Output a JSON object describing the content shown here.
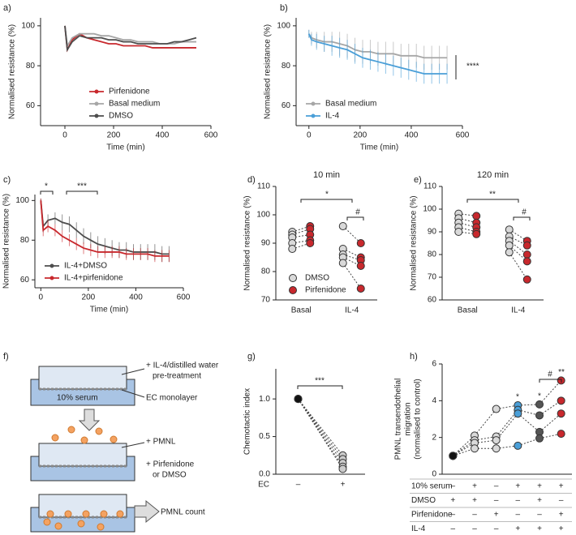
{
  "chart_data": [
    {
      "panel": "a)",
      "type": "line",
      "xlabel": "Time (min)",
      "ylabel": "Normalised resistance (%)",
      "x": [
        0,
        10,
        30,
        60,
        90,
        120,
        150,
        180,
        210,
        240,
        270,
        300,
        330,
        360,
        390,
        420,
        450,
        480,
        510,
        540
      ],
      "xlim": [
        -100,
        600
      ],
      "xticks": [
        0,
        200,
        400,
        600
      ],
      "ylim": [
        50,
        104
      ],
      "yticks": [
        60,
        80,
        100
      ],
      "legend": "lower center",
      "series": [
        {
          "name": "Pirfenidone",
          "color": "#c8282d",
          "values": [
            100,
            88,
            93,
            96,
            94,
            93,
            92,
            91,
            91,
            90,
            90,
            90,
            90,
            89,
            89,
            89,
            89,
            89,
            89,
            89
          ]
        },
        {
          "name": "Basal medium",
          "color": "#a6a6a6",
          "values": [
            100,
            90,
            94,
            96,
            96,
            96,
            95,
            95,
            94,
            93,
            93,
            92,
            92,
            92,
            91,
            91,
            91,
            92,
            92,
            92
          ]
        },
        {
          "name": "DMSO",
          "color": "#4d4d4d",
          "values": [
            100,
            88,
            92,
            95,
            94,
            94,
            94,
            93,
            93,
            92,
            92,
            91,
            91,
            91,
            91,
            91,
            92,
            92,
            93,
            94
          ]
        }
      ]
    },
    {
      "panel": "b)",
      "type": "line",
      "xlabel": "Time (min)",
      "ylabel": "Normalised resistance (%)",
      "x": [
        0,
        10,
        30,
        60,
        90,
        120,
        150,
        180,
        210,
        240,
        270,
        300,
        330,
        360,
        390,
        420,
        450,
        480,
        510,
        540
      ],
      "xlim": [
        -50,
        600
      ],
      "xticks": [
        0,
        200,
        400,
        600
      ],
      "ylim": [
        50,
        104
      ],
      "yticks": [
        60,
        80,
        100
      ],
      "legend": "lower left",
      "annotations": [
        "****"
      ],
      "series": [
        {
          "name": "Basal medium",
          "color": "#a6a6a6",
          "values": [
            96,
            94,
            93,
            92,
            92,
            91,
            90,
            88,
            87,
            87,
            86,
            86,
            86,
            85,
            85,
            85,
            84,
            84,
            84,
            84
          ],
          "errors": [
            2,
            3,
            4,
            5,
            5,
            6,
            6,
            6,
            6,
            6,
            6,
            6,
            6,
            6,
            6,
            6,
            6,
            6,
            6,
            6
          ]
        },
        {
          "name": "IL-4",
          "color": "#4a9fd8",
          "values": [
            96,
            93,
            92,
            91,
            90,
            89,
            88,
            86,
            84,
            83,
            82,
            81,
            80,
            79,
            78,
            77,
            76,
            76,
            76,
            76
          ],
          "errors": [
            2,
            3,
            4,
            4,
            5,
            5,
            5,
            5,
            5,
            5,
            5,
            5,
            5,
            5,
            5,
            5,
            5,
            5,
            5,
            5
          ]
        }
      ]
    },
    {
      "panel": "c)",
      "type": "line",
      "xlabel": "Time (min)",
      "ylabel": "Normalised resistance (%)",
      "x": [
        0,
        10,
        30,
        60,
        90,
        120,
        150,
        180,
        210,
        240,
        270,
        300,
        330,
        360,
        390,
        420,
        450,
        480,
        510,
        540
      ],
      "xlim": [
        -25,
        600
      ],
      "xticks": [
        0,
        200,
        400,
        600
      ],
      "ylim": [
        56,
        103
      ],
      "yticks": [
        60,
        80,
        100
      ],
      "legend": "lower left",
      "annotations": [
        "*",
        "***"
      ],
      "series": [
        {
          "name": "IL-4+DMSO",
          "color": "#4d4d4d",
          "values": [
            100,
            87,
            90,
            91,
            89,
            88,
            85,
            82,
            80,
            78,
            77,
            76,
            75,
            75,
            74,
            74,
            74,
            74,
            73,
            73
          ],
          "errors": [
            1,
            3,
            3,
            3,
            4,
            4,
            4,
            4,
            4,
            4,
            4,
            4,
            4,
            4,
            4,
            4,
            4,
            4,
            4,
            4
          ]
        },
        {
          "name": "IL-4+pirfenidone",
          "color": "#c8282d",
          "values": [
            100,
            85,
            87,
            85,
            82,
            80,
            78,
            76,
            75,
            74,
            74,
            74,
            74,
            73,
            73,
            73,
            73,
            72,
            72,
            72
          ],
          "errors": [
            1,
            3,
            3,
            3,
            3,
            3,
            3,
            3,
            3,
            3,
            3,
            3,
            3,
            3,
            3,
            3,
            3,
            3,
            3,
            3
          ]
        }
      ]
    },
    {
      "panel": "d)",
      "type": "paired_dot",
      "title": "10 min",
      "ylabel": "Normalised resistance (%)",
      "categories": [
        "Basal",
        "IL-4"
      ],
      "ylim": [
        70,
        110
      ],
      "yticks": [
        70,
        80,
        90,
        100,
        110
      ],
      "legend": "lower left",
      "annotations": [
        "*",
        "#"
      ],
      "series": [
        {
          "name": "DMSO",
          "color": "#d9d9d9",
          "values": [
            [
              94,
              93,
              92,
              90,
              88
            ],
            [
              96,
              88,
              86,
              85,
              83
            ]
          ]
        },
        {
          "name": "Pirfenidone",
          "color": "#c8282d",
          "values": [
            [
              96,
              95,
              93,
              91,
              90
            ],
            [
              90,
              85,
              84,
              82,
              74
            ]
          ]
        }
      ]
    },
    {
      "panel": "e)",
      "type": "paired_dot",
      "title": "120 min",
      "ylabel": "Normalised resistance (%)",
      "categories": [
        "Basal",
        "IL-4"
      ],
      "ylim": [
        60,
        110
      ],
      "yticks": [
        60,
        70,
        80,
        90,
        100,
        110
      ],
      "annotations": [
        "**",
        "#"
      ],
      "series": [
        {
          "color": "#d9d9d9",
          "values": [
            [
              98,
              96,
              94,
              92,
              90
            ],
            [
              91,
              88,
              86,
              84,
              81
            ]
          ]
        },
        {
          "color": "#c8282d",
          "values": [
            [
              97,
              94,
              92,
              90,
              89
            ],
            [
              86,
              84,
              80,
              77,
              69
            ]
          ]
        }
      ]
    },
    {
      "panel": "g)",
      "type": "paired_dot",
      "ylabel": "Chemotactic index",
      "xlabel": "EC",
      "categories": [
        "–",
        "+"
      ],
      "ylim": [
        0,
        1.4
      ],
      "yticks": [
        {
          "value": 0,
          "label": "0.0"
        },
        {
          "value": 0.5,
          "label": "0.5"
        },
        {
          "value": 1,
          "label": "1.0"
        }
      ],
      "annotations": [
        "***"
      ],
      "series": [
        {
          "colors": [
            "#111111",
            "#cccccc"
          ],
          "values": [
            [
              1,
              1,
              1,
              1,
              1
            ],
            [
              0.25,
              0.2,
              0.15,
              0.1,
              0.07
            ]
          ]
        }
      ]
    },
    {
      "panel": "h)",
      "type": "strip",
      "ylabel": [
        "PMNL transendothelial",
        "migration",
        "(normalised to control)"
      ],
      "ylim": [
        0,
        6
      ],
      "yticks": [
        0,
        2,
        4,
        6
      ],
      "annotations": [
        "*",
        "*",
        "**",
        "#"
      ],
      "groups": [
        {
          "color": "#111111",
          "values": [
            1,
            1,
            1,
            1
          ]
        },
        {
          "color": "#d9d9d9",
          "values": [
            2.1,
            1.85,
            1.7,
            1.4
          ]
        },
        {
          "color": "#d9d9d9",
          "values": [
            3.55,
            2.05,
            1.85,
            1.4
          ]
        },
        {
          "color": "#4a9fd8",
          "values": [
            3.75,
            3.5,
            3.3,
            1.55
          ]
        },
        {
          "color": "#555555",
          "values": [
            3.8,
            3.2,
            2.3,
            1.95
          ]
        },
        {
          "color": "#c8282d",
          "values": [
            5.1,
            4.0,
            3.3,
            2.2
          ]
        }
      ],
      "table": {
        "rows": [
          {
            "label": "10% serum",
            "cells": [
              "–",
              "+",
              "–",
              "+",
              "+",
              "+"
            ]
          },
          {
            "label": "DMSO",
            "cells": [
              "+",
              "+",
              "–",
              "–",
              "+",
              "–"
            ]
          },
          {
            "label": "Pirfenidone",
            "cells": [
              "–",
              "–",
              "+",
              "–",
              "–",
              "+"
            ]
          },
          {
            "label": "IL-4",
            "cells": [
              "–",
              "–",
              "–",
              "+",
              "+",
              "+"
            ]
          }
        ]
      }
    }
  ],
  "diagram": {
    "panel": "f)",
    "labels": [
      "+ IL-4/distilled water",
      "pre-treatment",
      "10% serum",
      "EC monolayer",
      "+ PMNL",
      "+ Pirfenidone",
      "or DMSO",
      "PMNL count"
    ]
  }
}
